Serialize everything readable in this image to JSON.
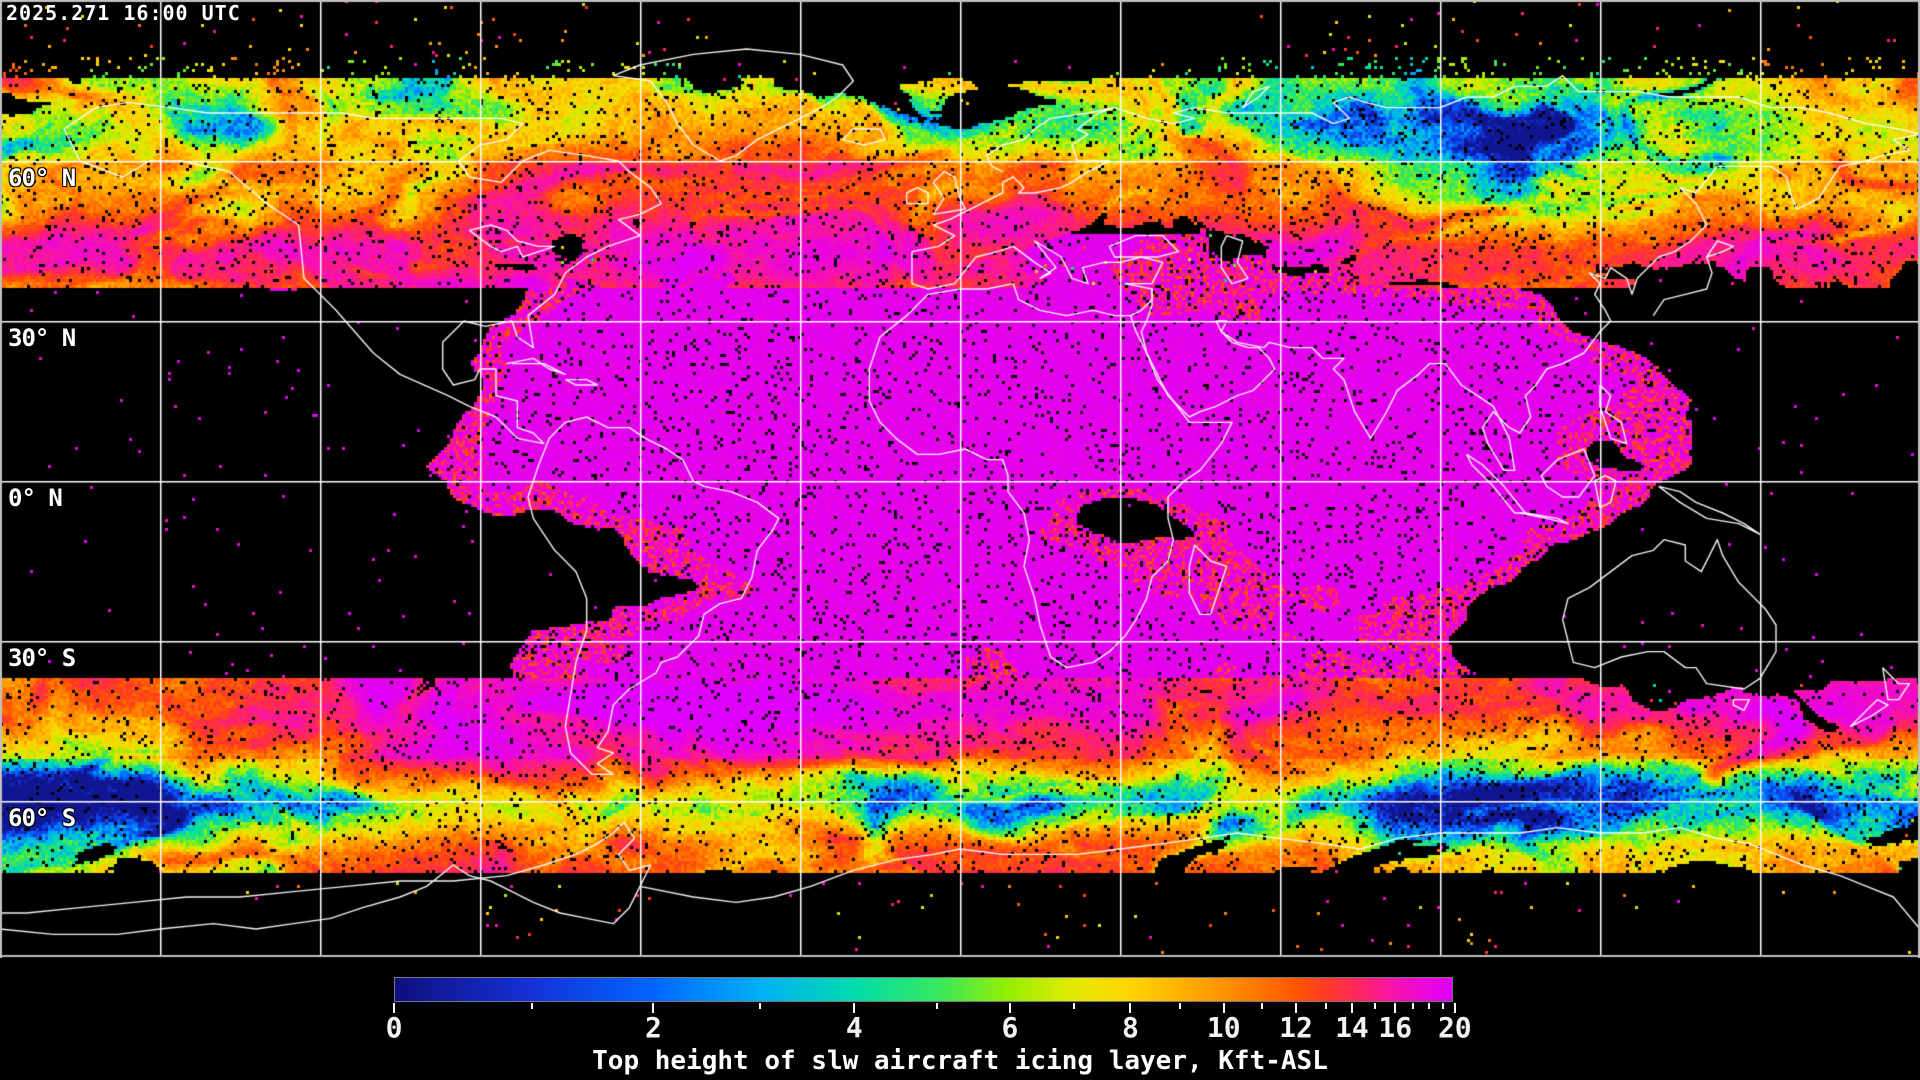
{
  "header": {
    "timestamp": "2025.271 16:00 UTC"
  },
  "map": {
    "background_color": "#000000",
    "coastline_color": "#ffffff",
    "gridline_color": "#ffffff",
    "frame_color": "#c0c0c0",
    "data_dominant_color": "#ee00ee",
    "latitude_labels": [
      {
        "label": "60° N"
      },
      {
        "label": "30° N"
      },
      {
        "label": "0° N"
      },
      {
        "label": "30° S"
      },
      {
        "label": "60° S"
      }
    ]
  },
  "colorbar": {
    "title": "Top height of slw aircraft icing layer, Kft-ASL",
    "units": "Kft-ASL",
    "min": 0,
    "max": 20,
    "major_ticks": [
      {
        "label": "0",
        "value": 0
      },
      {
        "label": "2",
        "value": 2
      },
      {
        "label": "4",
        "value": 4
      },
      {
        "label": "6",
        "value": 6
      },
      {
        "label": "8",
        "value": 8
      },
      {
        "label": "10",
        "value": 10
      },
      {
        "label": "12",
        "value": 12
      },
      {
        "label": "14",
        "value": 14
      },
      {
        "label": "16",
        "value": 16
      },
      {
        "label": "20",
        "value": 20
      }
    ],
    "minor_tick_values": [
      1,
      3,
      5,
      7,
      9,
      11,
      13,
      15,
      17,
      18,
      19
    ],
    "palette": [
      {
        "value": 0,
        "color": "#0f0f7d"
      },
      {
        "value": 1,
        "color": "#1432d8"
      },
      {
        "value": 2,
        "color": "#0066ff"
      },
      {
        "value": 3,
        "color": "#00b0f5"
      },
      {
        "value": 4,
        "color": "#00dcae"
      },
      {
        "value": 5,
        "color": "#35e860"
      },
      {
        "value": 6,
        "color": "#97ef00"
      },
      {
        "value": 7,
        "color": "#e2ea00"
      },
      {
        "value": 8,
        "color": "#ffd400"
      },
      {
        "value": 9,
        "color": "#ffb200"
      },
      {
        "value": 10,
        "color": "#ff9300"
      },
      {
        "value": 11,
        "color": "#ff7400"
      },
      {
        "value": 12,
        "color": "#ff5600"
      },
      {
        "value": 13,
        "color": "#ff3b26"
      },
      {
        "value": 14,
        "color": "#ff2b52"
      },
      {
        "value": 15,
        "color": "#fc1d81"
      },
      {
        "value": 16,
        "color": "#f713ae"
      },
      {
        "value": 17,
        "color": "#f00bc9"
      },
      {
        "value": 18,
        "color": "#ea06dd"
      },
      {
        "value": 19,
        "color": "#e402ec"
      },
      {
        "value": 20,
        "color": "#de00f8"
      }
    ]
  }
}
